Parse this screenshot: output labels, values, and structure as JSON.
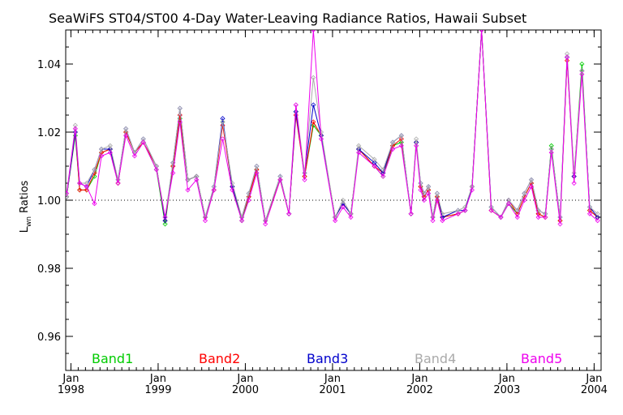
{
  "chart_data": {
    "type": "line",
    "title": "SeaWiFS ST04/ST00 4-Day Water-Leaving Radiance Ratios, Hawaii Subset",
    "ylabel_main": "L",
    "ylabel_sub": "wn",
    "ylabel_rest": " Ratios",
    "xlabel": "",
    "ylim": [
      0.95,
      1.05
    ],
    "yticks": [
      0.96,
      0.98,
      1.0,
      1.02,
      1.04
    ],
    "ytick_labels": [
      "0.96",
      "0.98",
      "1.00",
      "1.02",
      "1.04"
    ],
    "xlim": [
      1997.94,
      2004.08
    ],
    "xticks": [
      {
        "pos": 1998.0,
        "month": "Jan",
        "year": "1998"
      },
      {
        "pos": 1999.0,
        "month": "Jan",
        "year": "1999"
      },
      {
        "pos": 2000.0,
        "month": "Jan",
        "year": "2000"
      },
      {
        "pos": 2001.0,
        "month": "Jan",
        "year": "2001"
      },
      {
        "pos": 2002.0,
        "month": "Jan",
        "year": "2002"
      },
      {
        "pos": 2003.0,
        "month": "Jan",
        "year": "2003"
      },
      {
        "pos": 2004.0,
        "month": "Jan",
        "year": "2004"
      }
    ],
    "reference_line": 1.0,
    "x": [
      1997.95,
      1998.05,
      1998.1,
      1998.18,
      1998.27,
      1998.35,
      1998.45,
      1998.54,
      1998.63,
      1998.73,
      1998.83,
      1998.98,
      1999.08,
      1999.17,
      1999.25,
      1999.34,
      1999.44,
      1999.54,
      1999.64,
      1999.74,
      1999.85,
      1999.96,
      2000.04,
      2000.13,
      2000.23,
      2000.4,
      2000.5,
      2000.58,
      2000.68,
      2000.78,
      2000.87,
      2001.03,
      2001.12,
      2001.21,
      2001.3,
      2001.48,
      2001.58,
      2001.69,
      2001.79,
      2001.9,
      2001.96,
      2002.01,
      2002.05,
      2002.1,
      2002.15,
      2002.2,
      2002.26,
      2002.44,
      2002.52,
      2002.6,
      2002.71,
      2002.82,
      2002.93,
      2003.02,
      2003.12,
      2003.2,
      2003.28,
      2003.36,
      2003.44,
      2003.51,
      2003.61,
      2003.69,
      2003.77,
      2003.86,
      2003.95,
      2004.04
    ],
    "series": [
      {
        "name": "Band1",
        "color": "#00cc00",
        "values": [
          1.001,
          1.019,
          1.003,
          1.003,
          1.007,
          1.014,
          1.015,
          1.005,
          1.02,
          1.014,
          1.017,
          1.009,
          0.993,
          1.01,
          1.024,
          1.006,
          1.007,
          0.995,
          1.003,
          1.023,
          1.004,
          0.994,
          1.001,
          1.009,
          0.994,
          1.006,
          0.996,
          1.026,
          1.007,
          1.022,
          1.019,
          0.995,
          0.999,
          0.996,
          1.015,
          1.01,
          1.007,
          1.016,
          1.017,
          0.996,
          1.017,
          1.004,
          1.001,
          1.003,
          0.995,
          1.001,
          0.995,
          0.996,
          0.997,
          1.004,
          1.05,
          0.997,
          0.995,
          0.999,
          0.996,
          1.001,
          1.005,
          0.996,
          0.995,
          1.016,
          0.994,
          1.042,
          1.007,
          1.04,
          0.997,
          0.995
        ]
      },
      {
        "name": "Band2",
        "color": "#ff0000",
        "values": [
          1.001,
          1.02,
          1.003,
          1.003,
          1.008,
          1.014,
          1.015,
          1.005,
          1.02,
          1.014,
          1.017,
          1.01,
          0.994,
          1.01,
          1.025,
          1.006,
          1.007,
          0.995,
          1.003,
          1.022,
          1.004,
          0.995,
          1.001,
          1.009,
          0.994,
          1.006,
          0.996,
          1.025,
          1.007,
          1.023,
          1.019,
          0.995,
          0.999,
          0.996,
          1.015,
          1.01,
          1.008,
          1.016,
          1.018,
          0.996,
          1.017,
          1.004,
          1.001,
          1.003,
          0.995,
          1.001,
          0.995,
          0.996,
          0.997,
          1.004,
          1.05,
          0.997,
          0.995,
          1.0,
          0.996,
          1.001,
          1.005,
          0.996,
          0.995,
          1.015,
          0.994,
          1.041,
          1.007,
          1.038,
          0.997,
          0.995
        ]
      },
      {
        "name": "Band3",
        "color": "#0000cc",
        "values": [
          1.001,
          1.02,
          1.005,
          1.004,
          1.009,
          1.015,
          1.015,
          1.006,
          1.021,
          1.014,
          1.018,
          1.01,
          0.994,
          1.011,
          1.027,
          1.006,
          1.007,
          0.995,
          1.004,
          1.024,
          1.004,
          0.995,
          1.002,
          1.01,
          0.994,
          1.007,
          0.996,
          1.026,
          1.008,
          1.028,
          1.019,
          0.995,
          0.999,
          0.996,
          1.015,
          1.011,
          1.008,
          1.017,
          1.019,
          0.996,
          1.017,
          1.005,
          1.002,
          1.004,
          0.995,
          1.002,
          0.995,
          0.997,
          0.997,
          1.004,
          1.05,
          0.998,
          0.995,
          1.0,
          0.997,
          1.002,
          1.006,
          0.997,
          0.996,
          1.015,
          0.995,
          1.042,
          1.007,
          1.038,
          0.998,
          0.995
        ]
      },
      {
        "name": "Band4",
        "color": "#aaaaaa",
        "values": [
          1.001,
          1.022,
          1.005,
          1.005,
          1.009,
          1.015,
          1.016,
          1.006,
          1.021,
          1.014,
          1.018,
          1.01,
          0.995,
          1.011,
          1.027,
          1.006,
          1.007,
          0.995,
          1.004,
          1.023,
          1.005,
          0.995,
          1.002,
          1.01,
          0.994,
          1.007,
          0.996,
          1.028,
          1.008,
          1.036,
          1.02,
          0.995,
          1.0,
          0.996,
          1.016,
          1.012,
          1.009,
          1.017,
          1.019,
          0.996,
          1.018,
          1.005,
          1.002,
          1.004,
          0.995,
          1.002,
          0.996,
          0.997,
          0.998,
          1.004,
          1.05,
          0.998,
          0.995,
          1.0,
          0.997,
          1.002,
          1.006,
          0.997,
          0.996,
          1.015,
          0.995,
          1.043,
          1.008,
          1.038,
          0.998,
          0.996
        ]
      },
      {
        "name": "Band5",
        "color": "#ee00ee",
        "values": [
          1.002,
          1.021,
          1.005,
          1.004,
          0.999,
          1.013,
          1.014,
          1.005,
          1.019,
          1.013,
          1.017,
          1.009,
          0.995,
          1.008,
          1.023,
          1.003,
          1.006,
          0.994,
          1.003,
          1.018,
          1.003,
          0.994,
          1.0,
          1.008,
          0.993,
          1.006,
          0.996,
          1.028,
          1.006,
          1.05,
          1.018,
          0.994,
          0.998,
          0.995,
          1.014,
          1.01,
          1.007,
          1.015,
          1.016,
          0.996,
          1.016,
          1.003,
          1.0,
          1.002,
          0.994,
          1.0,
          0.994,
          0.996,
          0.997,
          1.003,
          1.05,
          0.997,
          0.995,
          0.999,
          0.995,
          1.0,
          1.004,
          0.995,
          0.995,
          1.014,
          0.993,
          1.042,
          1.005,
          1.037,
          0.996,
          0.994
        ]
      }
    ],
    "legend_placement": "bottom, inside plot, horizontal row",
    "grid": false
  }
}
